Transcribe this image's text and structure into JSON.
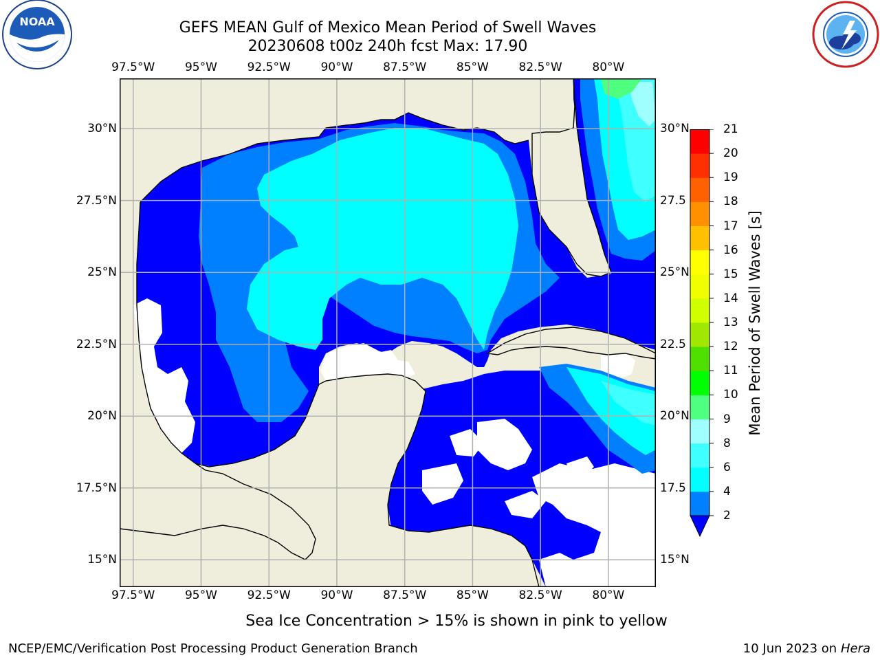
{
  "header": {
    "title_line1": "GEFS MEAN Gulf of Mexico Mean Period of Swell Waves",
    "title_line2": "20230608 t00z 240h fcst   Max: 17.90"
  },
  "logos": {
    "left": "NOAA",
    "left_ring_text": "NATIONAL OCEANIC AND ATMOSPHERIC ADMINISTRATION · U.S. DEPARTMENT OF COMMERCE",
    "right_ring_text": "NATIONAL WEATHER SERVICE"
  },
  "map": {
    "lon_ticks": [
      "97.5°W",
      "95°W",
      "92.5°W",
      "90°W",
      "87.5°W",
      "85°W",
      "82.5°W",
      "80°W"
    ],
    "lat_ticks_left": [
      "30°N",
      "27.5°N",
      "25°N",
      "22.5°N",
      "20°N",
      "17.5°N",
      "15°N"
    ],
    "lat_ticks_right": [
      "30°N",
      "27.5",
      "25°N",
      "22.5",
      "20°N",
      "17.5",
      "15°N"
    ],
    "extent": {
      "lon_min": -98.0,
      "lon_max": -78.25,
      "lat_min": 14.05,
      "lat_max": 31.75
    },
    "colors": {
      "land": "#efeddb",
      "ocean_missing": "#ffffff",
      "grid": "#b0b0b0",
      "coast": "#000000"
    }
  },
  "colorbar": {
    "label": "Mean Period of Swell Waves [s]",
    "ticks": [
      "2",
      "4",
      "6",
      "8",
      "9",
      "10",
      "11",
      "12",
      "13",
      "14",
      "15",
      "16",
      "17",
      "18",
      "19",
      "20",
      "21"
    ],
    "colors": [
      "#0000ff",
      "#0080ff",
      "#00ffff",
      "#40ffff",
      "#9fffff",
      "#4fff80",
      "#00ff00",
      "#50e000",
      "#a0e800",
      "#d0ff00",
      "#f0ff00",
      "#ffff00",
      "#ffc000",
      "#ff9000",
      "#ff6000",
      "#ff3000",
      "#ff0000"
    ],
    "extend_color": "#0000ff"
  },
  "note": "Sea Ice Concentration > 15% is shown in pink to yellow",
  "footer": {
    "left": "NCEP/EMC/Verification Post Processing Product Generation Branch",
    "right_date": "10 Jun 2023 on",
    "right_host": "Hera"
  }
}
